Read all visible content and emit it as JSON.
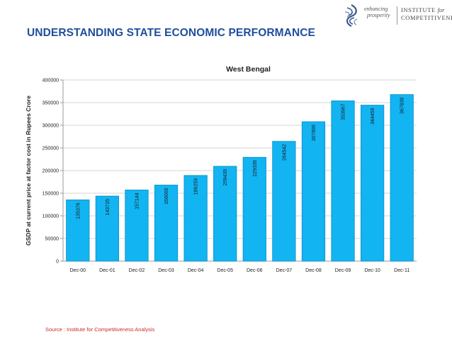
{
  "slide": {
    "title": "UNDERSTANDING STATE ECONOMIC PERFORMANCE",
    "source": "Source : Institute for Competitiveness Analysis"
  },
  "logo": {
    "tagline_line1": "enhancing",
    "tagline_line2": "prosperity",
    "name_line1_a": "INSTITUTE",
    "name_line1_b": "for",
    "name_line2": "COMPETITIVENESS",
    "icon": "swirl-emblem-icon",
    "color": "#3a5a8c"
  },
  "chart_data": {
    "type": "bar",
    "title": "West Bengal",
    "xlabel": "",
    "ylabel": "GSDP at current price at factor cost in Rupees Crore",
    "categories": [
      "Dec-00",
      "Dec-01",
      "Dec-02",
      "Dec-03",
      "Dec-04",
      "Dec-05",
      "Dec-06",
      "Dec-07",
      "Dec-08",
      "Dec-09",
      "Dec-10",
      "Dec-11"
    ],
    "values": [
      135376,
      143725,
      157144,
      168000,
      189259,
      209439,
      229339,
      264542,
      307895,
      353967,
      344459,
      367839
    ],
    "ylim": [
      0,
      400000
    ],
    "yticks": [
      0,
      50000,
      100000,
      150000,
      200000,
      250000,
      300000,
      350000,
      400000
    ],
    "grid": true,
    "legend": "none",
    "bar_color": "#12b4f2",
    "bar_edge_color": "#0a8fc4",
    "grid_color": "#d4d4d4",
    "data_labels": "rotated-inside-top"
  }
}
